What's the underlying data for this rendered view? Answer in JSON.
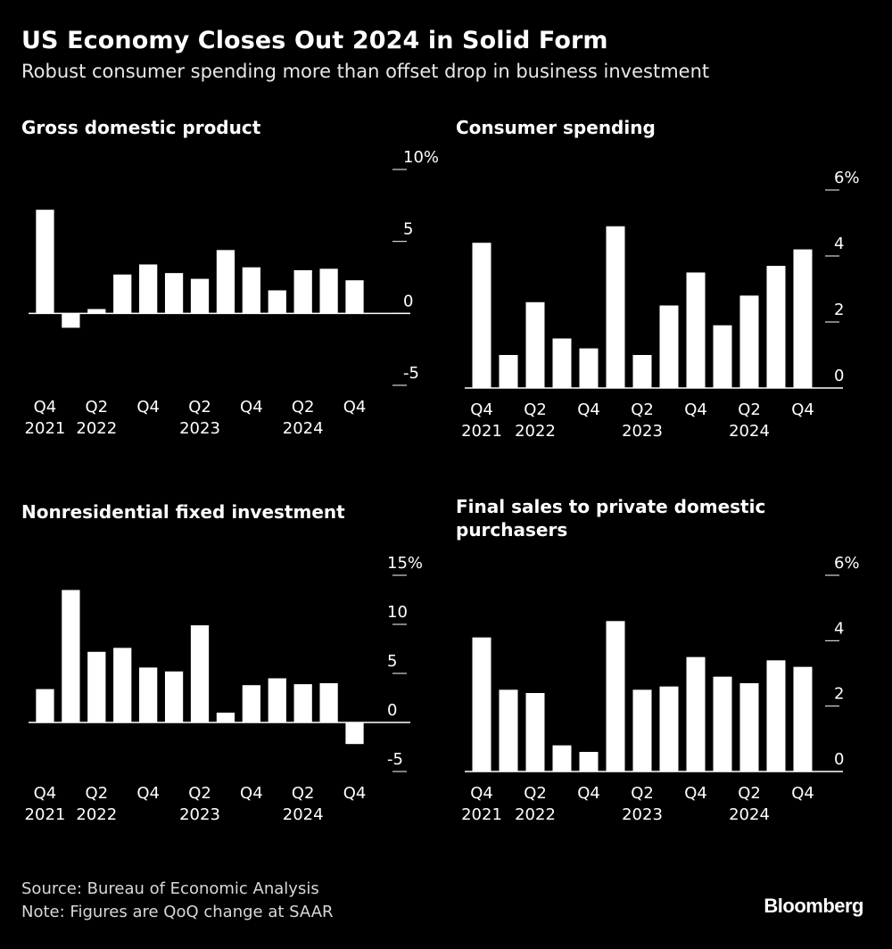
{
  "header": {
    "title": "US Economy Closes Out 2024 in Solid Form",
    "subtitle": "Robust consumer spending more than offset drop in business investment"
  },
  "footer": {
    "source": "Source: Bureau of Economic Analysis",
    "note": "Note: Figures are QoQ change at SAAR",
    "brand": "Bloomberg"
  },
  "colors": {
    "background": "#000000",
    "bars": "#ffffff",
    "axis": "#ffffff"
  },
  "chart_data": [
    {
      "type": "bar",
      "title": "Gross domestic product",
      "categories": [
        "Q4 2021",
        "Q1 2022",
        "Q2 2022",
        "Q3 2022",
        "Q4 2022",
        "Q1 2023",
        "Q2 2023",
        "Q3 2023",
        "Q4 2023",
        "Q1 2024",
        "Q2 2024",
        "Q3 2024",
        "Q4 2024"
      ],
      "values": [
        7.2,
        -1.0,
        0.3,
        2.7,
        3.4,
        2.8,
        2.4,
        4.4,
        3.2,
        1.6,
        3.0,
        3.1,
        2.3
      ],
      "ylim": [
        -5,
        10
      ],
      "yticks": [
        -5,
        0,
        5,
        10
      ],
      "ytick_labels": [
        "-5",
        "0",
        "5",
        "10%"
      ],
      "xtick_labels": [
        {
          "index": 0,
          "line1": "Q4",
          "line2": "2021"
        },
        {
          "index": 2,
          "line1": "Q2",
          "line2": "2022"
        },
        {
          "index": 4,
          "line1": "Q4",
          "line2": ""
        },
        {
          "index": 6,
          "line1": "Q2",
          "line2": "2023"
        },
        {
          "index": 8,
          "line1": "Q4",
          "line2": ""
        },
        {
          "index": 10,
          "line1": "Q2",
          "line2": "2024"
        },
        {
          "index": 12,
          "line1": "Q4",
          "line2": ""
        }
      ]
    },
    {
      "type": "bar",
      "title": "Consumer spending",
      "categories": [
        "Q4 2021",
        "Q1 2022",
        "Q2 2022",
        "Q3 2022",
        "Q4 2022",
        "Q1 2023",
        "Q2 2023",
        "Q3 2023",
        "Q4 2023",
        "Q1 2024",
        "Q2 2024",
        "Q3 2024",
        "Q4 2024"
      ],
      "values": [
        4.4,
        1.0,
        2.6,
        1.5,
        1.2,
        4.9,
        1.0,
        2.5,
        3.5,
        1.9,
        2.8,
        3.7,
        4.2
      ],
      "ylim": [
        0,
        6
      ],
      "yticks": [
        0,
        2,
        4,
        6
      ],
      "ytick_labels": [
        "0",
        "2",
        "4",
        "6%"
      ],
      "xtick_labels": [
        {
          "index": 0,
          "line1": "Q4",
          "line2": "2021"
        },
        {
          "index": 2,
          "line1": "Q2",
          "line2": "2022"
        },
        {
          "index": 4,
          "line1": "Q4",
          "line2": ""
        },
        {
          "index": 6,
          "line1": "Q2",
          "line2": "2023"
        },
        {
          "index": 8,
          "line1": "Q4",
          "line2": ""
        },
        {
          "index": 10,
          "line1": "Q2",
          "line2": "2024"
        },
        {
          "index": 12,
          "line1": "Q4",
          "line2": ""
        }
      ]
    },
    {
      "type": "bar",
      "title": "Nonresidential fixed investment",
      "categories": [
        "Q4 2021",
        "Q1 2022",
        "Q2 2022",
        "Q3 2022",
        "Q4 2022",
        "Q1 2023",
        "Q2 2023",
        "Q3 2023",
        "Q4 2023",
        "Q1 2024",
        "Q2 2024",
        "Q3 2024",
        "Q4 2024"
      ],
      "values": [
        3.4,
        13.5,
        7.2,
        7.6,
        5.6,
        5.2,
        9.9,
        1.0,
        3.8,
        4.5,
        3.9,
        4.0,
        -2.2
      ],
      "ylim": [
        -5,
        15
      ],
      "yticks": [
        -5,
        0,
        5,
        10,
        15
      ],
      "ytick_labels": [
        "-5",
        "0",
        "5",
        "10",
        "15%"
      ],
      "xtick_labels": [
        {
          "index": 0,
          "line1": "Q4",
          "line2": "2021"
        },
        {
          "index": 2,
          "line1": "Q2",
          "line2": "2022"
        },
        {
          "index": 4,
          "line1": "Q4",
          "line2": ""
        },
        {
          "index": 6,
          "line1": "Q2",
          "line2": "2023"
        },
        {
          "index": 8,
          "line1": "Q4",
          "line2": ""
        },
        {
          "index": 10,
          "line1": "Q2",
          "line2": "2024"
        },
        {
          "index": 12,
          "line1": "Q4",
          "line2": ""
        }
      ]
    },
    {
      "type": "bar",
      "title": "Final sales to private domestic purchasers",
      "categories": [
        "Q4 2021",
        "Q1 2022",
        "Q2 2022",
        "Q3 2022",
        "Q4 2022",
        "Q1 2023",
        "Q2 2023",
        "Q3 2023",
        "Q4 2023",
        "Q1 2024",
        "Q2 2024",
        "Q3 2024",
        "Q4 2024"
      ],
      "values": [
        4.1,
        2.5,
        2.4,
        0.8,
        0.6,
        4.6,
        2.5,
        2.6,
        3.5,
        2.9,
        2.7,
        3.4,
        3.2
      ],
      "ylim": [
        0,
        6
      ],
      "yticks": [
        0,
        2,
        4,
        6
      ],
      "ytick_labels": [
        "0",
        "2",
        "4",
        "6%"
      ],
      "xtick_labels": [
        {
          "index": 0,
          "line1": "Q4",
          "line2": "2021"
        },
        {
          "index": 2,
          "line1": "Q2",
          "line2": "2022"
        },
        {
          "index": 4,
          "line1": "Q4",
          "line2": ""
        },
        {
          "index": 6,
          "line1": "Q2",
          "line2": "2023"
        },
        {
          "index": 8,
          "line1": "Q4",
          "line2": ""
        },
        {
          "index": 10,
          "line1": "Q2",
          "line2": "2024"
        },
        {
          "index": 12,
          "line1": "Q4",
          "line2": ""
        }
      ]
    }
  ]
}
